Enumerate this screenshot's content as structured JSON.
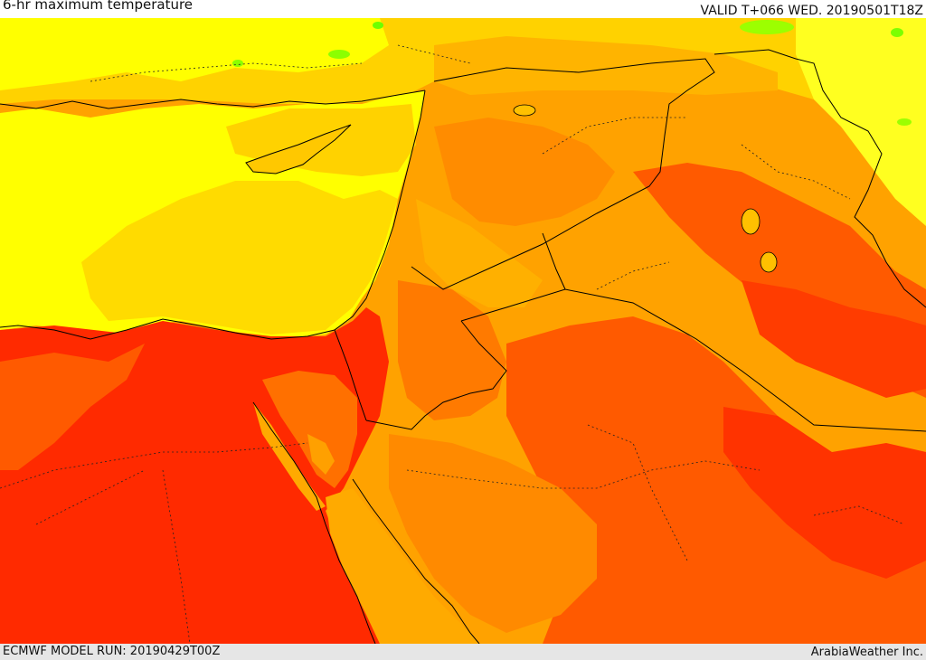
{
  "header": {
    "title": "6-hr maximum temperature",
    "valid": "VALID T+066 WED. 20190501T18Z"
  },
  "footer": {
    "model_run": "ECMWF MODEL RUN: 20190429T00Z",
    "credit": "ArabiaWeather Inc."
  },
  "palette": {
    "sea_yellow": "#ffff00",
    "light_orange_yellow": "#ffd700",
    "orange": "#ffa500",
    "deep_orange": "#ff7f00",
    "red_orange": "#ff5500",
    "red": "#ff2a00",
    "green": "#4cff00",
    "border_line": "#000000"
  }
}
